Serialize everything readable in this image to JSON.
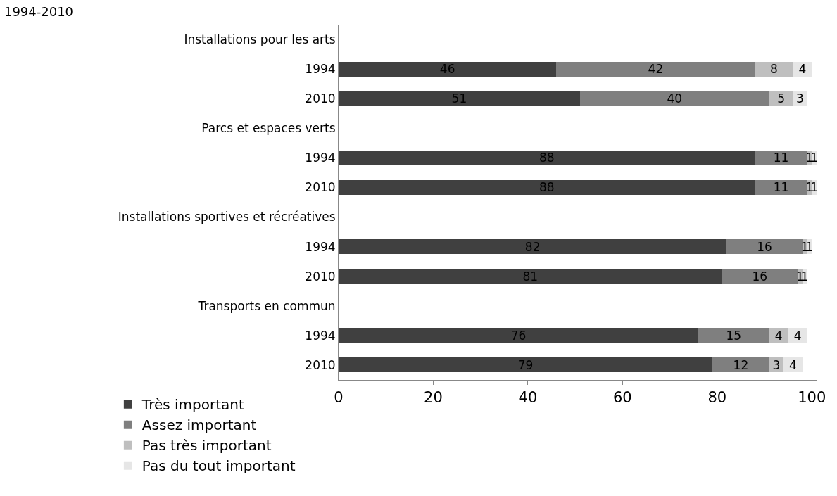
{
  "chart_data": {
    "type": "bar",
    "orientation": "horizontal",
    "stacked": true,
    "title": "1994-2010",
    "categories": [
      "Installations pour les arts",
      "1994",
      "2010",
      "Parcs et espaces verts",
      "1994",
      "2010",
      "Installations sportives et récréatives",
      "1994",
      "2010",
      "Transports en commun",
      "1994",
      "2010"
    ],
    "series": [
      {
        "name": "Très important",
        "color": "#404040",
        "values": [
          null,
          46,
          51,
          null,
          88,
          88,
          null,
          82,
          81,
          null,
          76,
          79
        ]
      },
      {
        "name": "Assez important",
        "color": "#7f7f7f",
        "values": [
          null,
          42,
          40,
          null,
          11,
          11,
          null,
          16,
          16,
          null,
          15,
          12
        ]
      },
      {
        "name": "Pas très important",
        "color": "#bfbfbf",
        "values": [
          null,
          8,
          5,
          null,
          1,
          1,
          null,
          1,
          1,
          null,
          4,
          3
        ]
      },
      {
        "name": "Pas du tout important",
        "color": "#e6e6e6",
        "values": [
          null,
          4,
          3,
          null,
          1,
          1,
          null,
          1,
          1,
          null,
          4,
          4
        ]
      }
    ],
    "xlim": [
      0,
      101
    ],
    "xticks": [
      0,
      20,
      40,
      60,
      80,
      100
    ],
    "data_labels": true,
    "legend": "bottom left"
  }
}
